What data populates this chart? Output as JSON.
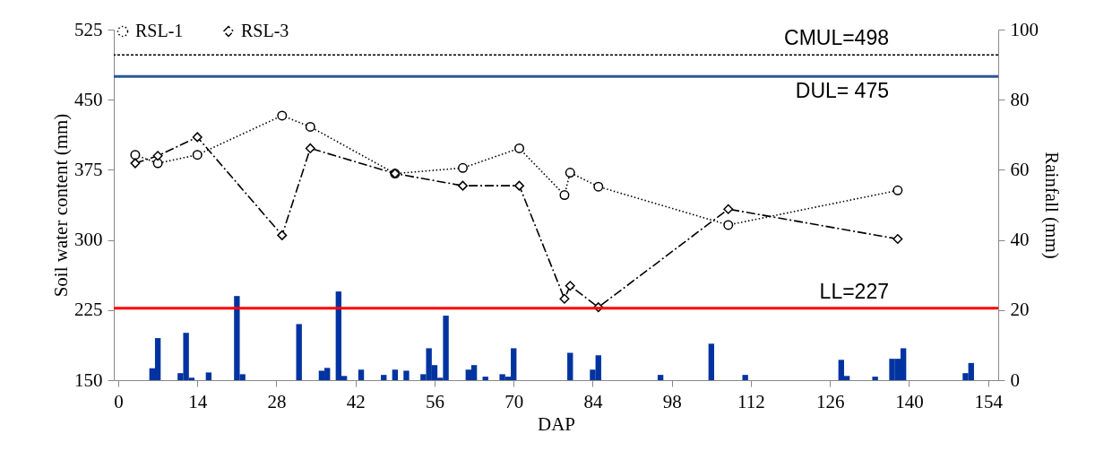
{
  "chart_data": {
    "type": "line",
    "xlabel": "DAP",
    "ylabel": "Soil water content (mm)",
    "y2label": "Rainfall (mm)",
    "xlim": [
      0,
      155
    ],
    "xticks": [
      0,
      14,
      28,
      42,
      56,
      70,
      84,
      98,
      112,
      126,
      140,
      154
    ],
    "ylim": [
      150,
      525
    ],
    "yticks": [
      150,
      225,
      300,
      375,
      450,
      525
    ],
    "y2lim": [
      0,
      100
    ],
    "y2ticks": [
      0,
      20,
      40,
      60,
      80,
      100
    ],
    "legend": "top",
    "grid": false,
    "series": [
      {
        "name": "RSL-1",
        "color": "#000000",
        "marker": "circle",
        "line_style": "dotted",
        "x": [
          3,
          7,
          14,
          29,
          34,
          49,
          61,
          71,
          79,
          80,
          85,
          108,
          138
        ],
        "values": [
          391,
          382,
          391,
          433,
          421,
          371,
          377,
          398,
          348,
          372,
          357,
          316,
          353
        ]
      },
      {
        "name": "RSL-3",
        "color": "#000000",
        "marker": "diamond",
        "line_style": "dashed",
        "x": [
          3,
          7,
          14,
          29,
          34,
          49,
          61,
          71,
          79,
          80,
          85,
          108,
          138
        ],
        "values": [
          382,
          390,
          410,
          305,
          398,
          371,
          358,
          358,
          237,
          251,
          228,
          333,
          301
        ]
      },
      {
        "type": "bar",
        "axis": "y2",
        "color": "#0033a0",
        "x": [
          6,
          7,
          11,
          12,
          13,
          16,
          21,
          22,
          32,
          36,
          37,
          39,
          40,
          43,
          47,
          49,
          51,
          54,
          55,
          56,
          57,
          58,
          62,
          63,
          65,
          68,
          69,
          70,
          80,
          84,
          85,
          96,
          105,
          111,
          128,
          129,
          134,
          137,
          138,
          139,
          150,
          151
        ],
        "values": [
          3.4,
          12,
          2,
          13.5,
          0.7,
          2.2,
          24,
          1.7,
          16,
          2.7,
          3.5,
          25.3,
          1.2,
          3,
          1.5,
          3,
          2.7,
          1.7,
          9.1,
          4.3,
          0.7,
          18.4,
          3,
          4.3,
          1,
          1.7,
          1,
          9.1,
          7.8,
          3,
          7.1,
          1.5,
          10.4,
          1.5,
          5.8,
          1.2,
          1,
          6.1,
          6.1,
          9.1,
          2,
          4.9
        ]
      }
    ],
    "ref_lines": [
      {
        "axis": "y",
        "value": 498,
        "label": "CMUL=498",
        "color": "#000000",
        "line_style": "dashed"
      },
      {
        "axis": "y",
        "value": 475,
        "label": "DUL= 475",
        "color": "#2e5597"
      },
      {
        "axis": "y",
        "value": 227,
        "label": "LL=227",
        "color": "#ff0000"
      }
    ]
  }
}
